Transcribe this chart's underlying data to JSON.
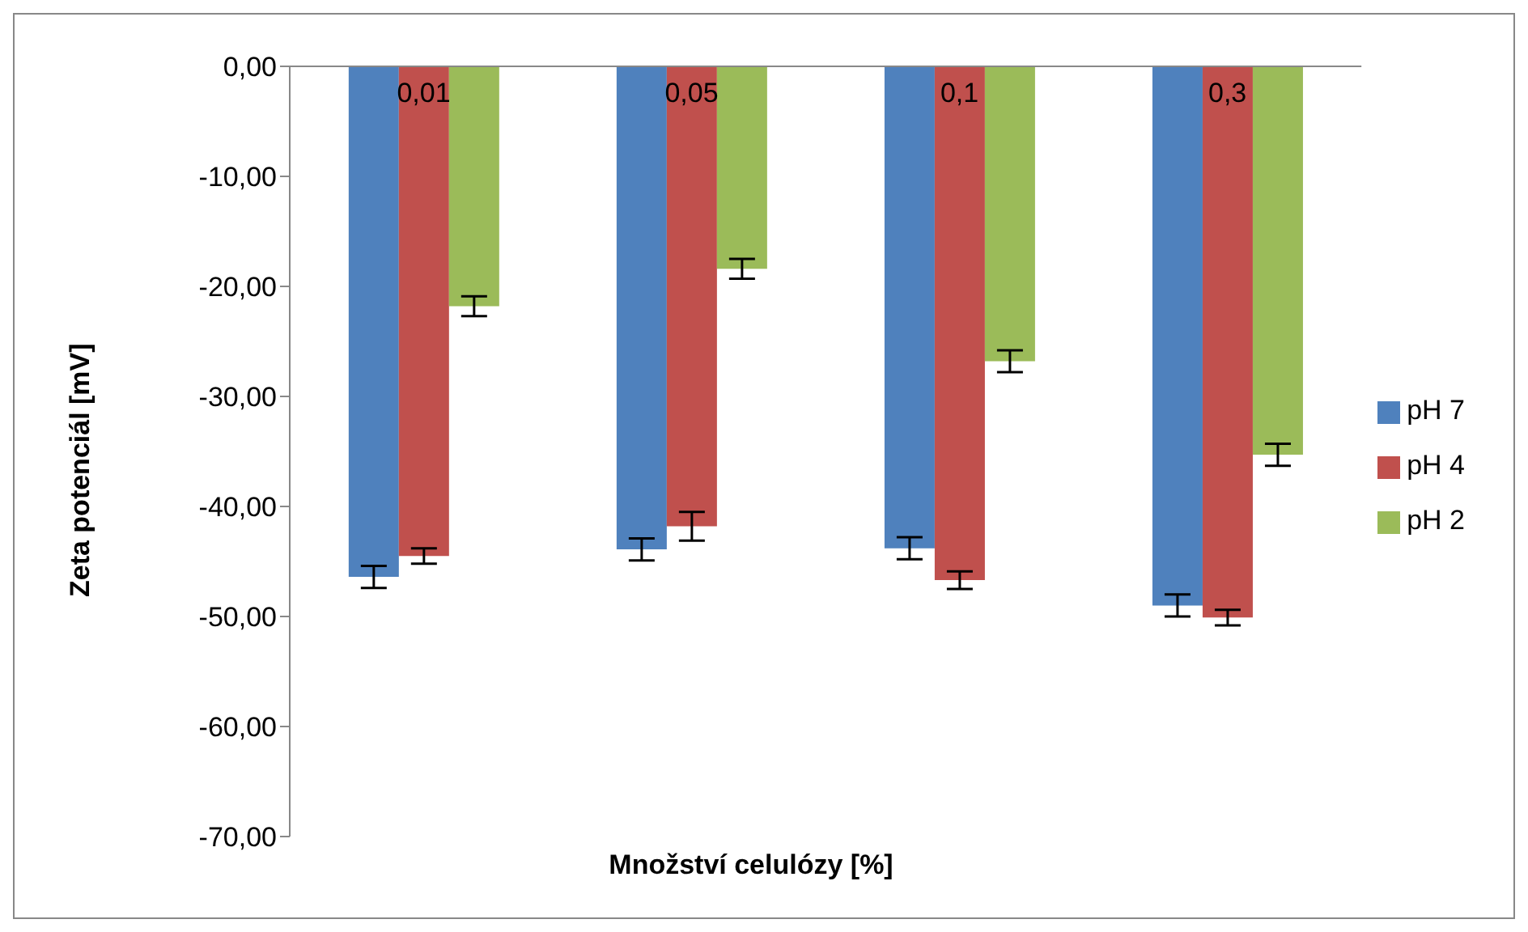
{
  "chart_data": {
    "type": "bar",
    "xlabel": "Množství celulózy [%]",
    "ylabel": "Zeta potenciál [mV]",
    "categories": [
      "0,01",
      "0,05",
      "0,1",
      "0,3"
    ],
    "series": [
      {
        "name": "pH 7",
        "color": "#4f81bd",
        "values": [
          -46.4,
          -43.9,
          -43.8,
          -49.0
        ],
        "errors": [
          1.0,
          1.0,
          1.0,
          1.0
        ]
      },
      {
        "name": "pH 4",
        "color": "#c0504d",
        "values": [
          -44.5,
          -41.8,
          -46.7,
          -50.1
        ],
        "errors": [
          0.7,
          1.3,
          0.8,
          0.7
        ]
      },
      {
        "name": "pH 2",
        "color": "#9bbb59",
        "values": [
          -21.8,
          -18.4,
          -26.8,
          -35.3
        ],
        "errors": [
          0.9,
          0.9,
          1.0,
          1.0
        ]
      }
    ],
    "ylim": [
      -70,
      0
    ],
    "yticks": [
      {
        "value": 0,
        "label": "0,00"
      },
      {
        "value": -10,
        "label": "-10,00"
      },
      {
        "value": -20,
        "label": "-20,00"
      },
      {
        "value": -30,
        "label": "-30,00"
      },
      {
        "value": -40,
        "label": "-40,00"
      },
      {
        "value": -50,
        "label": "-50,00"
      },
      {
        "value": -60,
        "label": "-60,00"
      },
      {
        "value": -70,
        "label": "-70,00"
      }
    ],
    "grid": false,
    "legend": "right"
  }
}
